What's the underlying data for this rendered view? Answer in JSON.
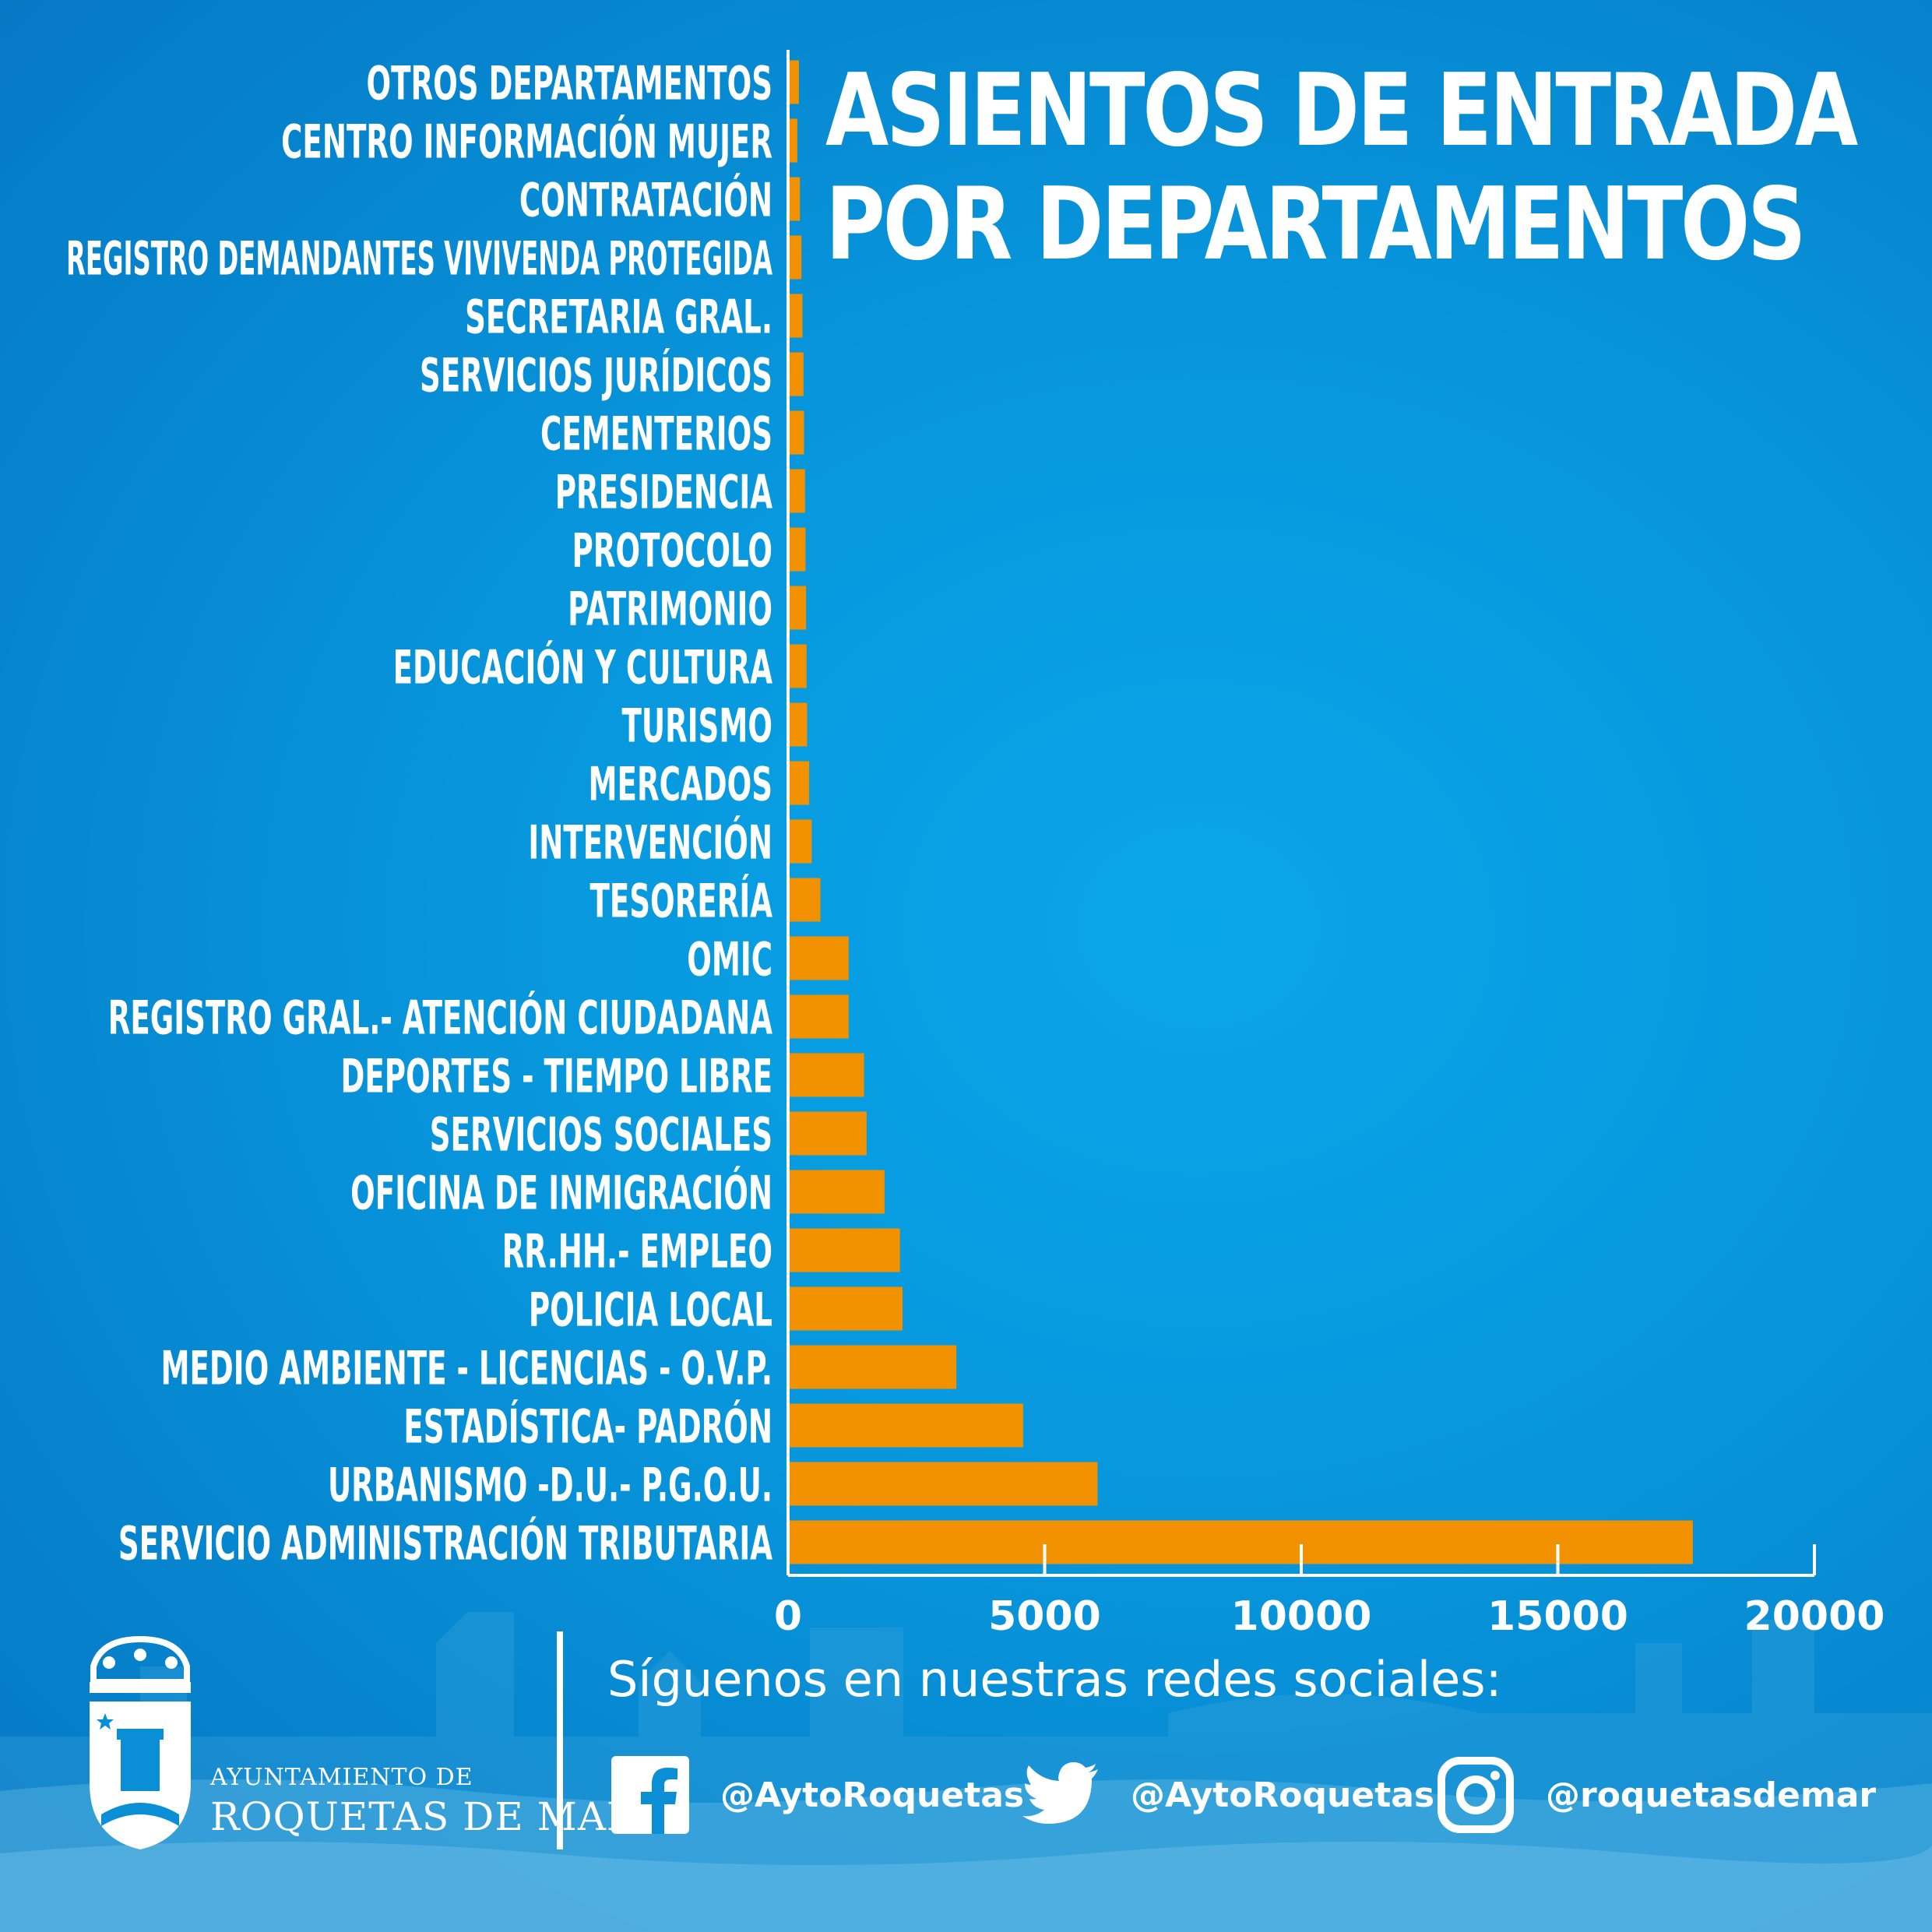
{
  "title": {
    "line1": "ASIENTOS DE ENTRADA",
    "line2": "POR DEPARTAMENTOS"
  },
  "chart_data": {
    "type": "bar",
    "orientation": "horizontal",
    "title": "ASIENTOS DE ENTRADA POR DEPARTAMENTOS",
    "xlabel": "",
    "ylabel": "",
    "xlim": [
      0,
      20000
    ],
    "x_ticks": [
      "0",
      "5000",
      "10000",
      "15000",
      "20000"
    ],
    "x_tick_values": [
      0,
      5000,
      10000,
      15000,
      20000
    ],
    "categories": [
      "OTROS DEPARTAMENTOS",
      "CENTRO INFORMACIÓN MUJER",
      "CONTRATACIÓN",
      "REGISTRO DEMANDANTES VIVIVENDA PROTEGIDA",
      "SECRETARIA GRAL.",
      "SERVICIOS JURÍDICOS",
      "CEMENTERIOS",
      "PRESIDENCIA",
      "PROTOCOLO",
      "PATRIMONIO",
      "EDUCACIÓN Y CULTURA",
      "TURISMO",
      "MERCADOS",
      "INTERVENCIÓN",
      "TESORERÍA",
      "OMIC",
      "REGISTRO GRAL.- ATENCIÓN CIUDADANA",
      "DEPORTES - TIEMPO LIBRE",
      "SERVICIOS SOCIALES",
      "OFICINA DE INMIGRACIÓN",
      "RR.HH.- EMPLEO",
      "POLICIA LOCAL",
      "MEDIO AMBIENTE - LICENCIAS - O.V.P.",
      "ESTADÍSTICA- PADRÓN",
      "URBANISMO -D.U.- P.G.O.U.",
      "SERVICIO ADMINISTRACIÓN TRIBUTARIA"
    ],
    "values": [
      180,
      150,
      200,
      230,
      250,
      270,
      280,
      300,
      310,
      320,
      330,
      340,
      380,
      430,
      600,
      1150,
      1150,
      1450,
      1500,
      1850,
      2150,
      2200,
      3250,
      4550,
      6000,
      17600
    ],
    "bar_color": "#f39200",
    "axis_color": "#ffffff",
    "grid": false
  },
  "footer": {
    "follow_text": "Síguenos en nuestras redes sociales:",
    "brand_line1": "AYUNTAMIENTO DE",
    "brand_line2": "ROQUETAS DE MAR",
    "socials": [
      {
        "icon": "facebook-icon",
        "handle": "@AytoRoquetas"
      },
      {
        "icon": "twitter-icon",
        "handle": "@AytoRoquetas"
      },
      {
        "icon": "instagram-icon",
        "handle": "@roquetasdemar"
      }
    ]
  }
}
